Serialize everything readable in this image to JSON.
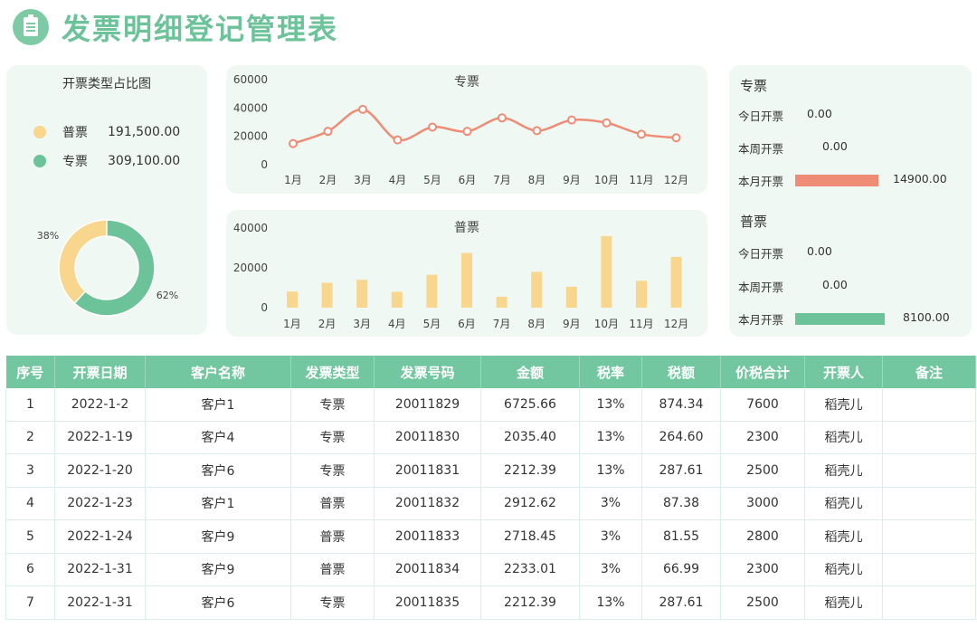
{
  "header": {
    "title": "发票明细登记管理表"
  },
  "pie_panel": {
    "title": "开票类型占比图",
    "legend": [
      {
        "name": "普票",
        "value": "191,500.00",
        "color": "#f9d68e"
      },
      {
        "name": "专票",
        "value": "309,100.00",
        "color": "#6cc39a"
      }
    ]
  },
  "stats": {
    "special": {
      "title": "专票",
      "today_label": "今日开票",
      "today": "0.00",
      "week_label": "本周开票",
      "week": "0.00",
      "month_label": "本月开票",
      "month": "14900.00",
      "bar_color": "#ef8c76"
    },
    "normal": {
      "title": "普票",
      "today_label": "今日开票",
      "today": "0.00",
      "week_label": "本周开票",
      "week": "0.00",
      "month_label": "本月开票",
      "month": "8100.00",
      "bar_color": "#6cc39a"
    }
  },
  "chart_data": [
    {
      "type": "pie",
      "title": "开票类型占比图",
      "categories": [
        "普票",
        "专票"
      ],
      "values": [
        191500,
        309100
      ],
      "labels": [
        "38%",
        "62%"
      ],
      "colors": [
        "#f9d68e",
        "#6cc39a"
      ]
    },
    {
      "type": "line",
      "title": "专票",
      "categories": [
        "1月",
        "2月",
        "3月",
        "4月",
        "5月",
        "6月",
        "7月",
        "8月",
        "9月",
        "10月",
        "11月",
        "12月"
      ],
      "values": [
        14900,
        23500,
        39000,
        17500,
        26500,
        23500,
        33000,
        24000,
        31500,
        29500,
        21500,
        19000
      ],
      "yticks": [
        "0",
        "20000",
        "40000",
        "60000"
      ],
      "ylim": [
        0,
        60000
      ],
      "color": "#ef8c76"
    },
    {
      "type": "bar",
      "title": "普票",
      "categories": [
        "1月",
        "2月",
        "3月",
        "4月",
        "5月",
        "6月",
        "7月",
        "8月",
        "9月",
        "10月",
        "11月",
        "12月"
      ],
      "values": [
        8100,
        12500,
        14000,
        8000,
        16500,
        27500,
        5500,
        18000,
        10500,
        36000,
        13500,
        25500
      ],
      "yticks": [
        "0",
        "20000",
        "40000"
      ],
      "ylim": [
        0,
        40000
      ],
      "color": "#f9d68e"
    }
  ],
  "table": {
    "columns": [
      "序号",
      "开票日期",
      "客户名称",
      "发票类型",
      "发票号码",
      "金额",
      "税率",
      "税额",
      "价税合计",
      "开票人",
      "备注"
    ],
    "rows": [
      [
        "1",
        "2022-1-2",
        "客户1",
        "专票",
        "20011829",
        "6725.66",
        "13%",
        "874.34",
        "7600",
        "稻壳儿",
        ""
      ],
      [
        "2",
        "2022-1-19",
        "客户4",
        "专票",
        "20011830",
        "2035.40",
        "13%",
        "264.60",
        "2300",
        "稻壳儿",
        ""
      ],
      [
        "3",
        "2022-1-20",
        "客户6",
        "专票",
        "20011831",
        "2212.39",
        "13%",
        "287.61",
        "2500",
        "稻壳儿",
        ""
      ],
      [
        "4",
        "2022-1-23",
        "客户1",
        "普票",
        "20011832",
        "2912.62",
        "3%",
        "87.38",
        "3000",
        "稻壳儿",
        ""
      ],
      [
        "5",
        "2022-1-24",
        "客户9",
        "普票",
        "20011833",
        "2718.45",
        "3%",
        "81.55",
        "2800",
        "稻壳儿",
        ""
      ],
      [
        "6",
        "2022-1-31",
        "客户9",
        "普票",
        "20011834",
        "2233.01",
        "3%",
        "66.99",
        "2300",
        "稻壳儿",
        ""
      ],
      [
        "7",
        "2022-1-31",
        "客户6",
        "专票",
        "20011835",
        "2212.39",
        "13%",
        "287.61",
        "2500",
        "稻壳儿",
        ""
      ]
    ]
  }
}
